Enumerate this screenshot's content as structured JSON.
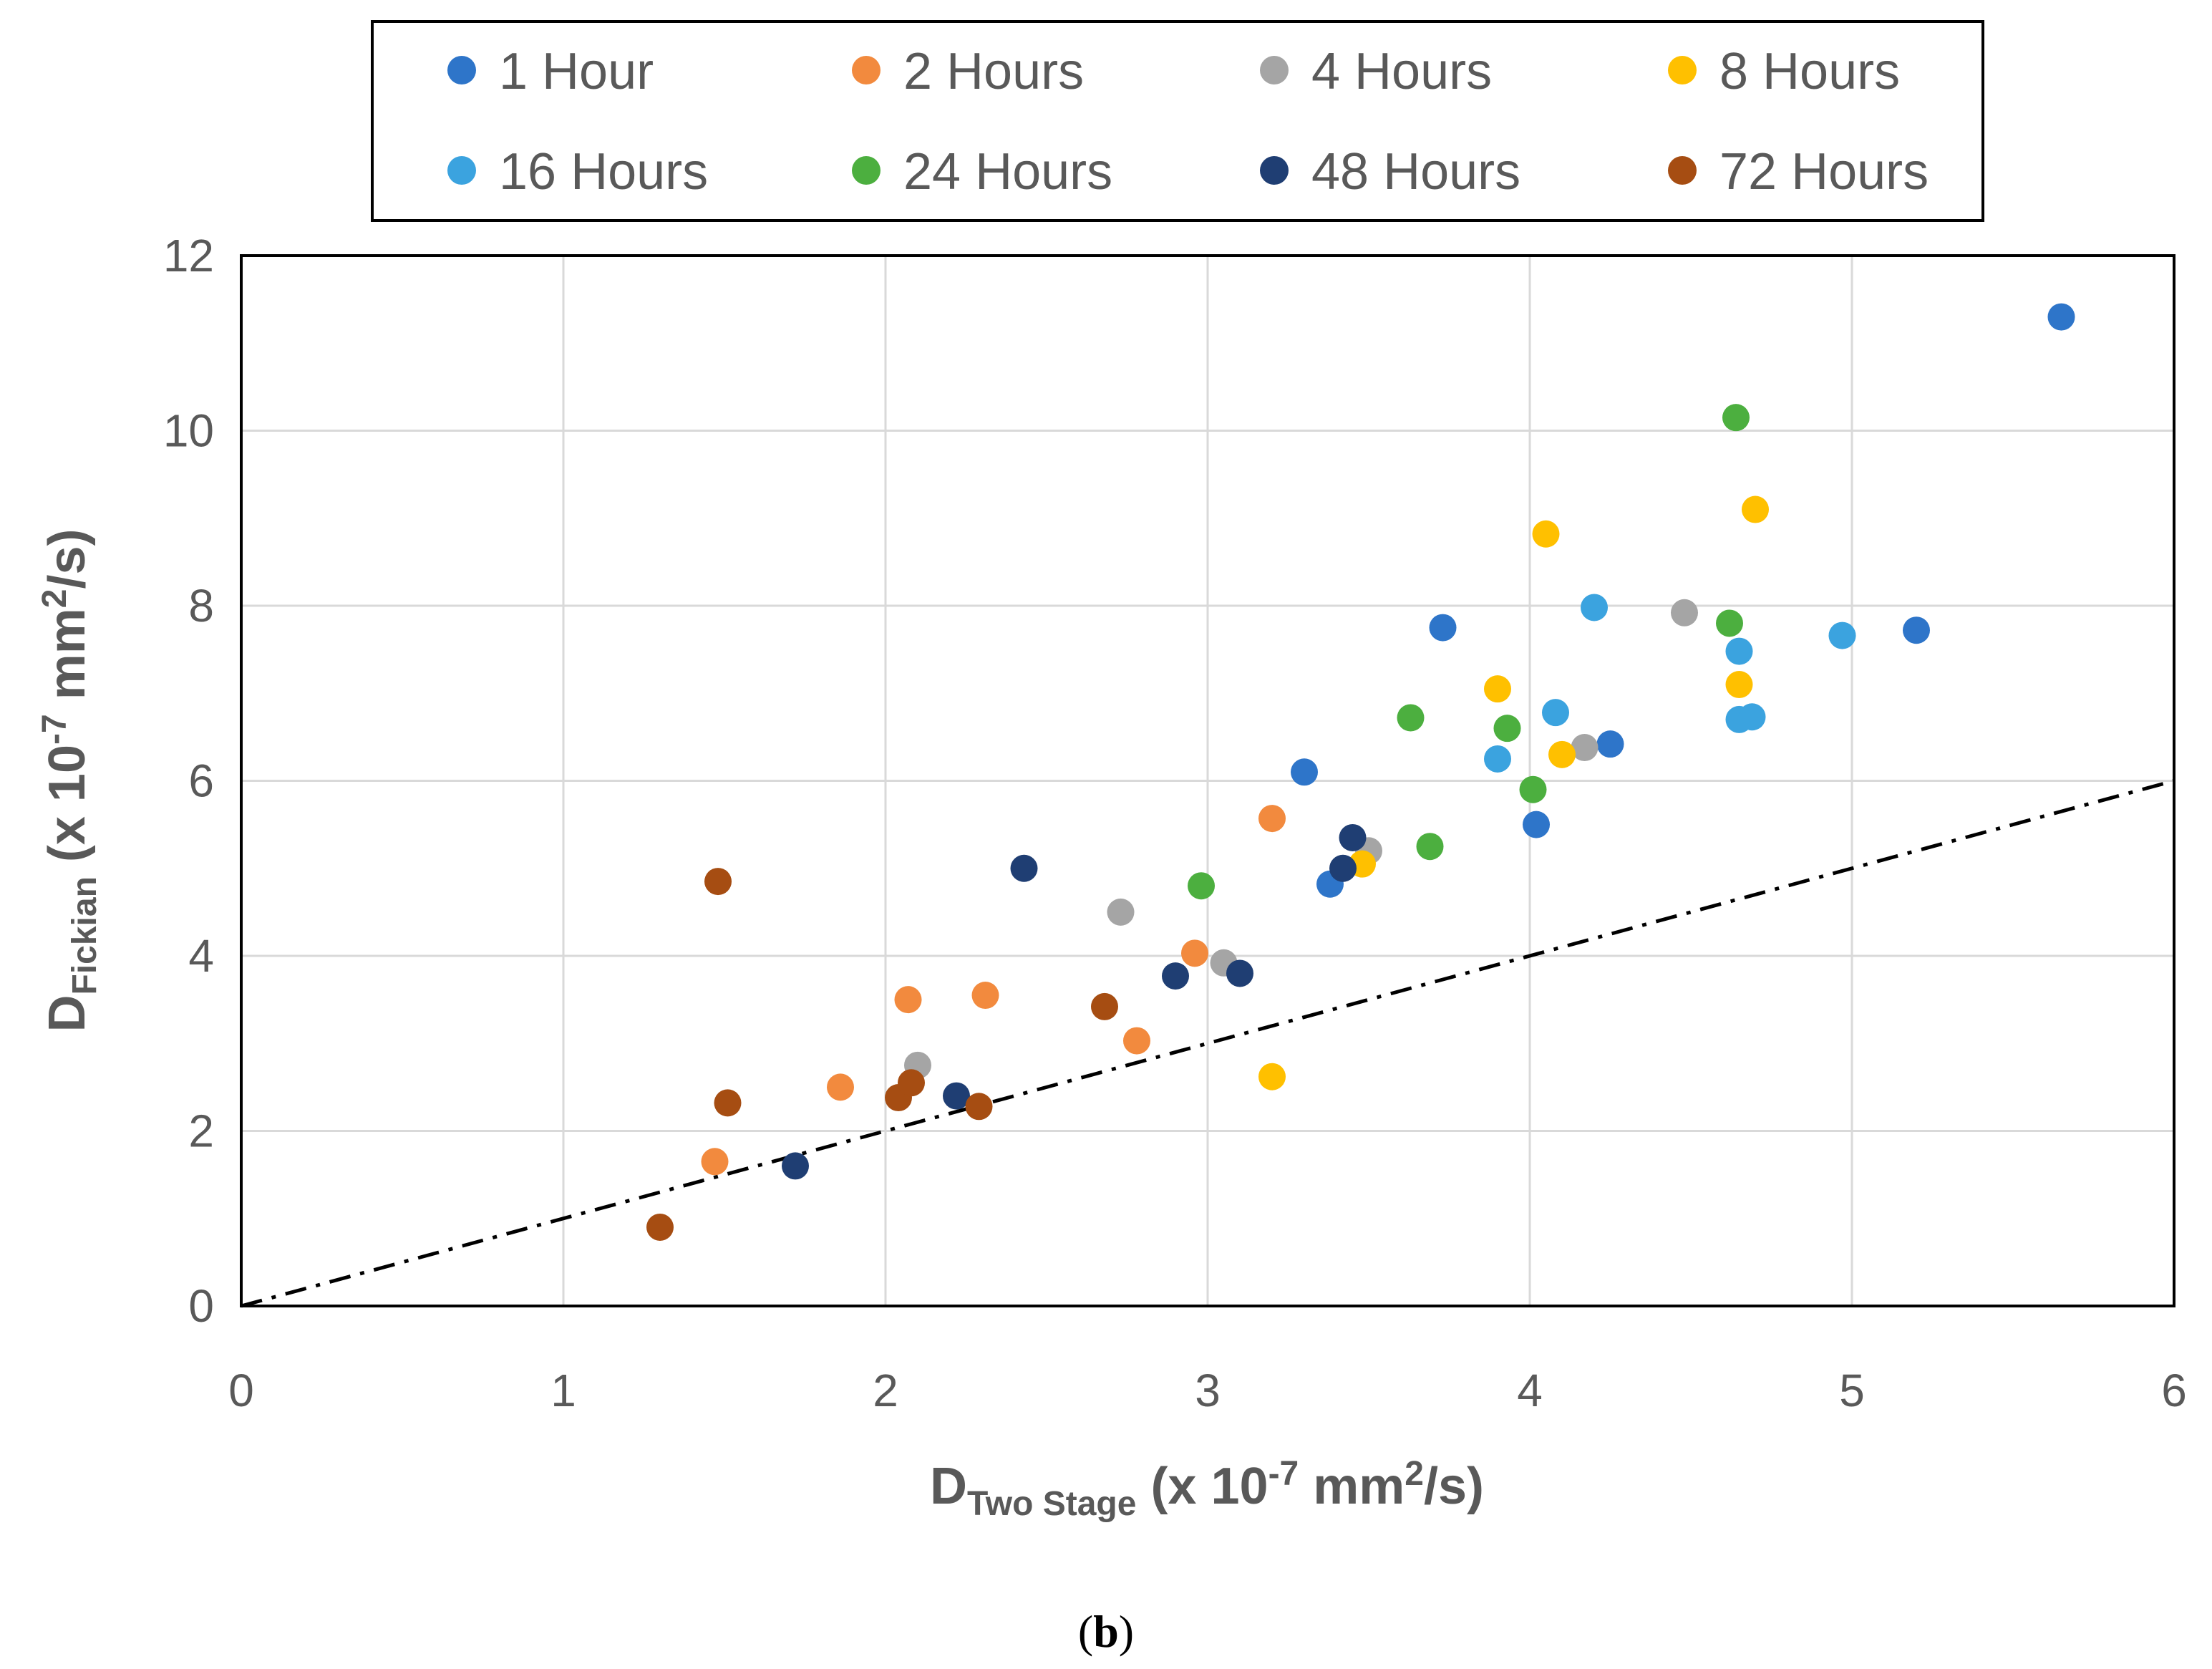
{
  "chart_data": {
    "type": "scatter",
    "xlabel": {
      "main": "D",
      "sub": "Two Stage",
      "pre_sup": " (x 10",
      "sup": "-7",
      "mid": " mm",
      "sup2": "2",
      "post": "/s)"
    },
    "ylabel": {
      "main": "D",
      "sub": "Fickian",
      "pre_sup": " (x 10",
      "sup": "-7",
      "mid": " mm",
      "sup2": "2",
      "post": "/s)"
    },
    "xlim": [
      0,
      6
    ],
    "ylim": [
      0,
      12
    ],
    "xticks": [
      "0",
      "1",
      "2",
      "3",
      "4",
      "5",
      "6"
    ],
    "yticks": [
      "0",
      "2",
      "4",
      "6",
      "8",
      "10",
      "12"
    ],
    "grid": true,
    "legend_position": "top",
    "reference_line": {
      "style": "dash-dot",
      "color": "#000000",
      "points": [
        [
          0,
          0
        ],
        [
          6,
          6
        ]
      ]
    },
    "series": [
      {
        "name": "1 Hour",
        "color": "#2E75C9",
        "points": [
          [
            3.3,
            6.1
          ],
          [
            3.38,
            4.82
          ],
          [
            3.73,
            7.75
          ],
          [
            4.02,
            5.5
          ],
          [
            4.25,
            6.42
          ],
          [
            5.2,
            7.72
          ],
          [
            5.65,
            11.3
          ]
        ]
      },
      {
        "name": "2 Hours",
        "color": "#F28A3E",
        "points": [
          [
            1.47,
            1.65
          ],
          [
            1.86,
            2.5
          ],
          [
            2.07,
            3.5
          ],
          [
            2.31,
            3.55
          ],
          [
            2.78,
            3.03
          ],
          [
            2.96,
            4.03
          ],
          [
            3.2,
            5.57
          ]
        ]
      },
      {
        "name": "4 Hours",
        "color": "#A5A5A5",
        "points": [
          [
            2.1,
            2.75
          ],
          [
            2.73,
            4.5
          ],
          [
            3.05,
            3.92
          ],
          [
            3.5,
            5.2
          ],
          [
            4.17,
            6.38
          ],
          [
            4.48,
            7.92
          ]
        ]
      },
      {
        "name": "8 Hours",
        "color": "#FFC000",
        "points": [
          [
            3.2,
            2.62
          ],
          [
            3.48,
            5.05
          ],
          [
            3.9,
            7.05
          ],
          [
            4.05,
            8.82
          ],
          [
            4.1,
            6.3
          ],
          [
            4.65,
            7.1
          ],
          [
            4.7,
            9.1
          ]
        ]
      },
      {
        "name": "16 Hours",
        "color": "#3BA3DF",
        "points": [
          [
            3.9,
            6.25
          ],
          [
            4.08,
            6.78
          ],
          [
            4.2,
            7.98
          ],
          [
            4.65,
            7.48
          ],
          [
            4.65,
            6.7
          ],
          [
            4.69,
            6.73
          ],
          [
            4.97,
            7.66
          ]
        ]
      },
      {
        "name": "24 Hours",
        "color": "#4CAF3F",
        "points": [
          [
            2.98,
            4.8
          ],
          [
            3.63,
            6.72
          ],
          [
            3.69,
            5.25
          ],
          [
            3.93,
            6.6
          ],
          [
            4.01,
            5.9
          ],
          [
            4.62,
            7.8
          ],
          [
            4.64,
            10.15
          ]
        ]
      },
      {
        "name": "48 Hours",
        "color": "#1F3E73",
        "points": [
          [
            1.72,
            1.6
          ],
          [
            2.22,
            2.4
          ],
          [
            2.43,
            5.0
          ],
          [
            2.9,
            3.77
          ],
          [
            3.1,
            3.8
          ],
          [
            3.42,
            5.0
          ],
          [
            3.45,
            5.35
          ]
        ]
      },
      {
        "name": "72 Hours",
        "color": "#A64D12",
        "points": [
          [
            1.3,
            0.9
          ],
          [
            1.48,
            4.85
          ],
          [
            1.51,
            2.32
          ],
          [
            2.04,
            2.38
          ],
          [
            2.08,
            2.55
          ],
          [
            2.29,
            2.28
          ],
          [
            2.68,
            3.42
          ]
        ]
      }
    ]
  },
  "caption": {
    "open": "(",
    "letter": "b",
    "close": ")"
  }
}
